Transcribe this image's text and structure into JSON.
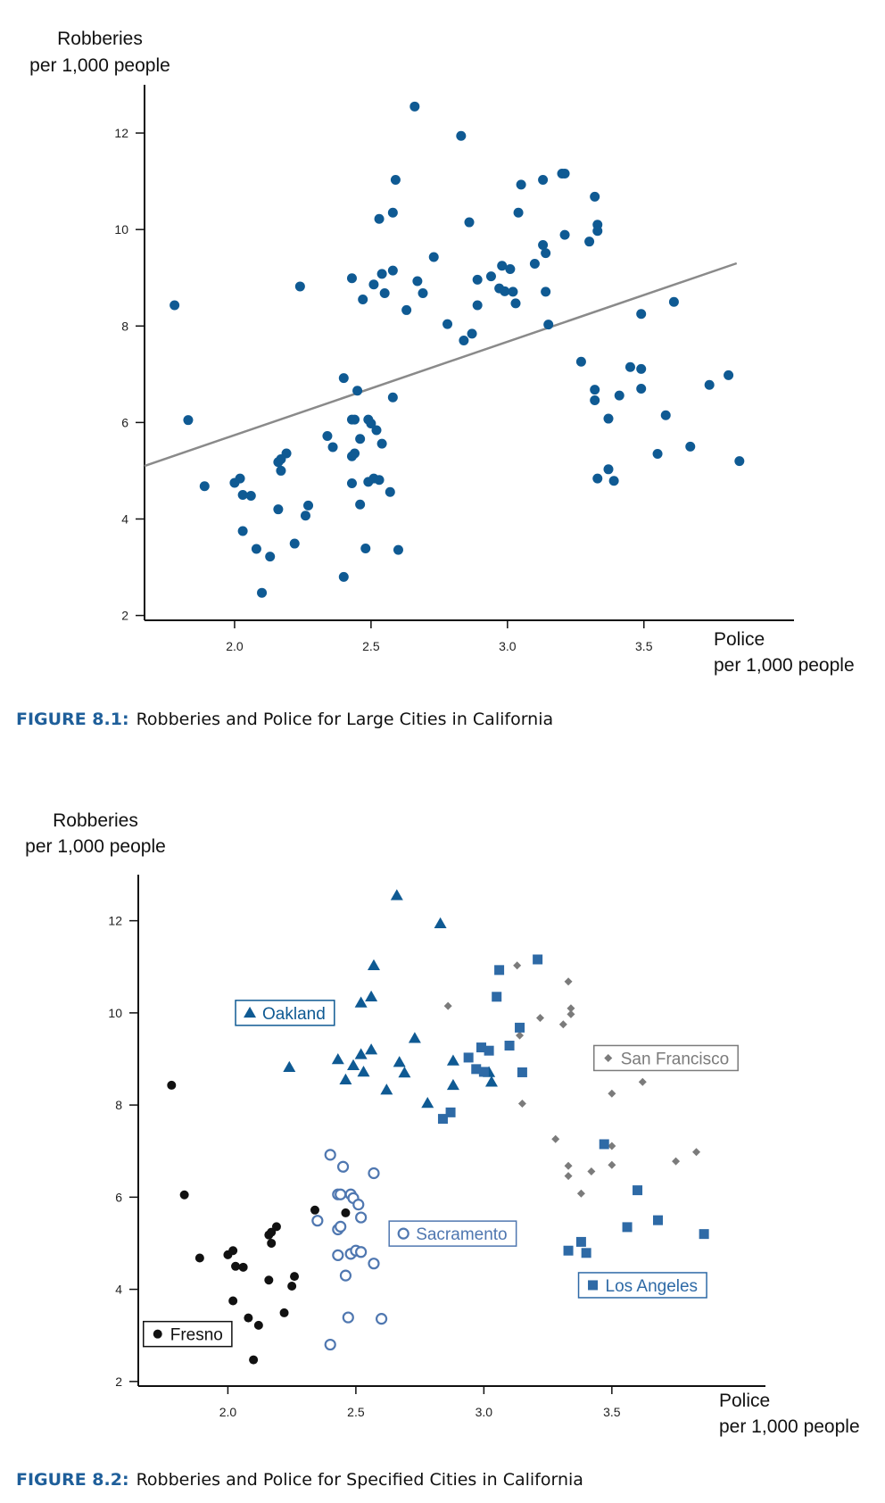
{
  "figures": [
    {
      "caption_label": "FIGURE 8.1:",
      "caption_text": "Robberies and Police for Large Cities in California"
    },
    {
      "caption_label": "FIGURE 8.2:",
      "caption_text": "Robberies and Police for Specified Cities in California"
    }
  ],
  "chart_data": [
    {
      "type": "scatter",
      "ylabel": [
        "Robberies",
        "per 1,000 people"
      ],
      "xlabel": [
        "Police",
        "per 1,000 people"
      ],
      "xlim": [
        1.67,
        4.05
      ],
      "ylim": [
        1.9,
        13.0
      ],
      "xticks": [
        "2.0",
        "2.5",
        "3.0",
        "3.5"
      ],
      "xtick_values": [
        2.0,
        2.5,
        3.0,
        3.5
      ],
      "yticks": [
        "2",
        "4",
        "6",
        "8",
        "10",
        "12"
      ],
      "ytick_values": [
        2,
        4,
        6,
        8,
        10,
        12
      ],
      "trendline": {
        "x": [
          1.67,
          3.84
        ],
        "y": [
          5.1,
          9.3
        ],
        "color": "#8a8a8a"
      },
      "point_color": "#0f5a93",
      "points": [
        [
          1.78,
          8.43
        ],
        [
          1.83,
          6.05
        ],
        [
          1.89,
          4.68
        ],
        [
          2.0,
          4.75
        ],
        [
          2.02,
          4.84
        ],
        [
          2.03,
          4.5
        ],
        [
          2.03,
          3.75
        ],
        [
          2.06,
          4.48
        ],
        [
          2.08,
          3.38
        ],
        [
          2.1,
          2.47
        ],
        [
          2.13,
          3.22
        ],
        [
          2.16,
          5.18
        ],
        [
          2.16,
          4.2
        ],
        [
          2.17,
          5.24
        ],
        [
          2.17,
          5.0
        ],
        [
          2.19,
          5.36
        ],
        [
          2.22,
          3.49
        ],
        [
          2.24,
          8.82
        ],
        [
          2.26,
          4.07
        ],
        [
          2.27,
          4.28
        ],
        [
          2.34,
          5.72
        ],
        [
          2.36,
          5.49
        ],
        [
          2.4,
          6.92
        ],
        [
          2.4,
          2.8
        ],
        [
          2.43,
          8.99
        ],
        [
          2.43,
          6.06
        ],
        [
          2.43,
          5.3
        ],
        [
          2.43,
          4.74
        ],
        [
          2.44,
          6.06
        ],
        [
          2.44,
          5.36
        ],
        [
          2.45,
          6.66
        ],
        [
          2.46,
          5.66
        ],
        [
          2.46,
          4.3
        ],
        [
          2.47,
          8.55
        ],
        [
          2.48,
          3.39
        ],
        [
          2.49,
          6.06
        ],
        [
          2.49,
          4.77
        ],
        [
          2.5,
          5.98
        ],
        [
          2.51,
          8.86
        ],
        [
          2.51,
          4.84
        ],
        [
          2.52,
          5.84
        ],
        [
          2.53,
          10.22
        ],
        [
          2.53,
          4.81
        ],
        [
          2.54,
          9.08
        ],
        [
          2.54,
          5.56
        ],
        [
          2.55,
          8.68
        ],
        [
          2.57,
          4.56
        ],
        [
          2.58,
          10.35
        ],
        [
          2.58,
          9.15
        ],
        [
          2.58,
          6.52
        ],
        [
          2.59,
          11.03
        ],
        [
          2.6,
          3.36
        ],
        [
          2.63,
          8.33
        ],
        [
          2.66,
          12.55
        ],
        [
          2.67,
          8.93
        ],
        [
          2.69,
          8.68
        ],
        [
          2.73,
          9.43
        ],
        [
          2.78,
          8.04
        ],
        [
          2.83,
          11.94
        ],
        [
          2.84,
          7.7
        ],
        [
          2.86,
          10.15
        ],
        [
          2.87,
          7.84
        ],
        [
          2.89,
          8.96
        ],
        [
          2.89,
          8.43
        ],
        [
          2.94,
          9.03
        ],
        [
          2.97,
          8.78
        ],
        [
          2.98,
          9.25
        ],
        [
          2.99,
          8.72
        ],
        [
          3.01,
          9.18
        ],
        [
          3.02,
          8.71
        ],
        [
          3.03,
          8.47
        ],
        [
          3.04,
          10.35
        ],
        [
          3.05,
          10.93
        ],
        [
          3.1,
          9.29
        ],
        [
          3.13,
          11.03
        ],
        [
          3.13,
          9.68
        ],
        [
          3.14,
          9.51
        ],
        [
          3.14,
          8.71
        ],
        [
          3.15,
          8.03
        ],
        [
          3.2,
          11.16
        ],
        [
          3.21,
          11.16
        ],
        [
          3.21,
          9.89
        ],
        [
          3.27,
          7.26
        ],
        [
          3.3,
          9.75
        ],
        [
          3.32,
          10.68
        ],
        [
          3.33,
          10.1
        ],
        [
          3.33,
          9.97
        ],
        [
          3.32,
          6.68
        ],
        [
          3.32,
          6.46
        ],
        [
          3.33,
          4.84
        ],
        [
          3.37,
          6.08
        ],
        [
          3.37,
          5.03
        ],
        [
          3.39,
          4.79
        ],
        [
          3.41,
          6.56
        ],
        [
          3.45,
          7.15
        ],
        [
          3.49,
          8.25
        ],
        [
          3.49,
          7.11
        ],
        [
          3.49,
          6.7
        ],
        [
          3.55,
          5.35
        ],
        [
          3.58,
          6.15
        ],
        [
          3.61,
          8.5
        ],
        [
          3.67,
          5.5
        ],
        [
          3.74,
          6.78
        ],
        [
          3.81,
          6.98
        ],
        [
          3.85,
          5.2
        ]
      ]
    },
    {
      "type": "scatter",
      "ylabel": [
        "Robberies",
        "per 1,000 people"
      ],
      "xlabel": [
        "Police",
        "per 1,000 people"
      ],
      "xlim": [
        1.65,
        4.1
      ],
      "ylim": [
        1.9,
        13.0
      ],
      "xticks": [
        "2.0",
        "2.5",
        "3.0",
        "3.5"
      ],
      "xtick_values": [
        2.0,
        2.5,
        3.0,
        3.5
      ],
      "yticks": [
        "2",
        "4",
        "6",
        "8",
        "10",
        "12"
      ],
      "ytick_values": [
        2,
        4,
        6,
        8,
        10,
        12
      ],
      "series": [
        {
          "name": "Oakland",
          "marker": "triangle",
          "color": "#0f5a93",
          "points": [
            [
              2.24,
              8.82
            ],
            [
              2.43,
              8.99
            ],
            [
              2.46,
              8.55
            ],
            [
              2.49,
              8.86
            ],
            [
              2.52,
              10.22
            ],
            [
              2.52,
              9.1
            ],
            [
              2.53,
              8.72
            ],
            [
              2.56,
              9.2
            ],
            [
              2.56,
              10.35
            ],
            [
              2.57,
              11.03
            ],
            [
              2.62,
              8.33
            ],
            [
              2.66,
              12.55
            ],
            [
              2.67,
              8.93
            ],
            [
              2.69,
              8.7
            ],
            [
              2.73,
              9.45
            ],
            [
              2.78,
              8.04
            ],
            [
              2.83,
              11.94
            ],
            [
              2.88,
              8.96
            ],
            [
              2.88,
              8.43
            ],
            [
              3.02,
              8.71
            ],
            [
              3.03,
              8.5
            ]
          ]
        },
        {
          "name": "San Francisco",
          "marker": "diamond",
          "color": "#7b7b7b",
          "points": [
            [
              2.86,
              10.15
            ],
            [
              3.13,
              11.03
            ],
            [
              3.14,
              9.51
            ],
            [
              3.15,
              8.03
            ],
            [
              3.21,
              11.16
            ],
            [
              3.22,
              9.89
            ],
            [
              3.28,
              7.26
            ],
            [
              3.31,
              9.75
            ],
            [
              3.33,
              10.68
            ],
            [
              3.34,
              10.1
            ],
            [
              3.34,
              9.97
            ],
            [
              3.33,
              6.68
            ],
            [
              3.33,
              6.46
            ],
            [
              3.38,
              6.08
            ],
            [
              3.42,
              6.56
            ],
            [
              3.5,
              8.25
            ],
            [
              3.5,
              7.11
            ],
            [
              3.5,
              6.7
            ],
            [
              3.62,
              8.5
            ],
            [
              3.75,
              6.78
            ],
            [
              3.83,
              6.98
            ]
          ]
        },
        {
          "name": "Sacramento",
          "marker": "open-circle",
          "color": "#4f77b0",
          "points": [
            [
              2.4,
              6.92
            ],
            [
              2.4,
              2.8
            ],
            [
              2.43,
              6.06
            ],
            [
              2.43,
              5.3
            ],
            [
              2.43,
              4.74
            ],
            [
              2.44,
              6.06
            ],
            [
              2.44,
              5.36
            ],
            [
              2.45,
              6.66
            ],
            [
              2.46,
              4.3
            ],
            [
              2.47,
              3.39
            ],
            [
              2.48,
              6.06
            ],
            [
              2.48,
              4.77
            ],
            [
              2.49,
              5.98
            ],
            [
              2.5,
              4.84
            ],
            [
              2.51,
              5.84
            ],
            [
              2.52,
              5.56
            ],
            [
              2.52,
              4.81
            ],
            [
              2.57,
              4.56
            ],
            [
              2.57,
              6.52
            ],
            [
              2.6,
              3.36
            ],
            [
              2.35,
              5.49
            ]
          ]
        },
        {
          "name": "Los Angeles",
          "marker": "square",
          "color": "#2e6aa6",
          "points": [
            [
              2.84,
              7.7
            ],
            [
              2.87,
              7.84
            ],
            [
              2.94,
              9.03
            ],
            [
              2.97,
              8.78
            ],
            [
              2.99,
              9.25
            ],
            [
              3.0,
              8.72
            ],
            [
              3.02,
              9.18
            ],
            [
              3.05,
              10.35
            ],
            [
              3.06,
              10.93
            ],
            [
              3.1,
              9.29
            ],
            [
              3.14,
              9.68
            ],
            [
              3.15,
              8.71
            ],
            [
              3.21,
              11.16
            ],
            [
              3.33,
              4.84
            ],
            [
              3.38,
              5.03
            ],
            [
              3.4,
              4.79
            ],
            [
              3.47,
              7.15
            ],
            [
              3.6,
              6.15
            ],
            [
              3.56,
              5.35
            ],
            [
              3.68,
              5.5
            ],
            [
              3.86,
              5.2
            ]
          ]
        },
        {
          "name": "Fresno",
          "marker": "filled-circle",
          "color": "#111111",
          "points": [
            [
              1.78,
              8.43
            ],
            [
              1.83,
              6.05
            ],
            [
              1.89,
              4.68
            ],
            [
              2.0,
              4.75
            ],
            [
              2.02,
              4.84
            ],
            [
              2.03,
              4.5
            ],
            [
              2.02,
              3.75
            ],
            [
              2.06,
              4.48
            ],
            [
              2.08,
              3.38
            ],
            [
              2.1,
              2.47
            ],
            [
              2.12,
              3.22
            ],
            [
              2.16,
              5.18
            ],
            [
              2.16,
              4.2
            ],
            [
              2.17,
              5.24
            ],
            [
              2.17,
              5.0
            ],
            [
              2.19,
              5.36
            ],
            [
              2.22,
              3.49
            ],
            [
              2.25,
              4.07
            ],
            [
              2.26,
              4.28
            ],
            [
              2.34,
              5.72
            ],
            [
              2.46,
              5.66
            ]
          ]
        }
      ],
      "legend_labels": [
        {
          "series": "Oakland",
          "x": 2.03,
          "y": 10.0
        },
        {
          "series": "San Francisco",
          "x": 3.43,
          "y": 9.02
        },
        {
          "series": "Sacramento",
          "x": 2.63,
          "y": 5.21
        },
        {
          "series": "Los Angeles",
          "x": 3.37,
          "y": 4.09
        },
        {
          "series": "Fresno",
          "x": 1.67,
          "y": 3.03
        }
      ]
    }
  ]
}
